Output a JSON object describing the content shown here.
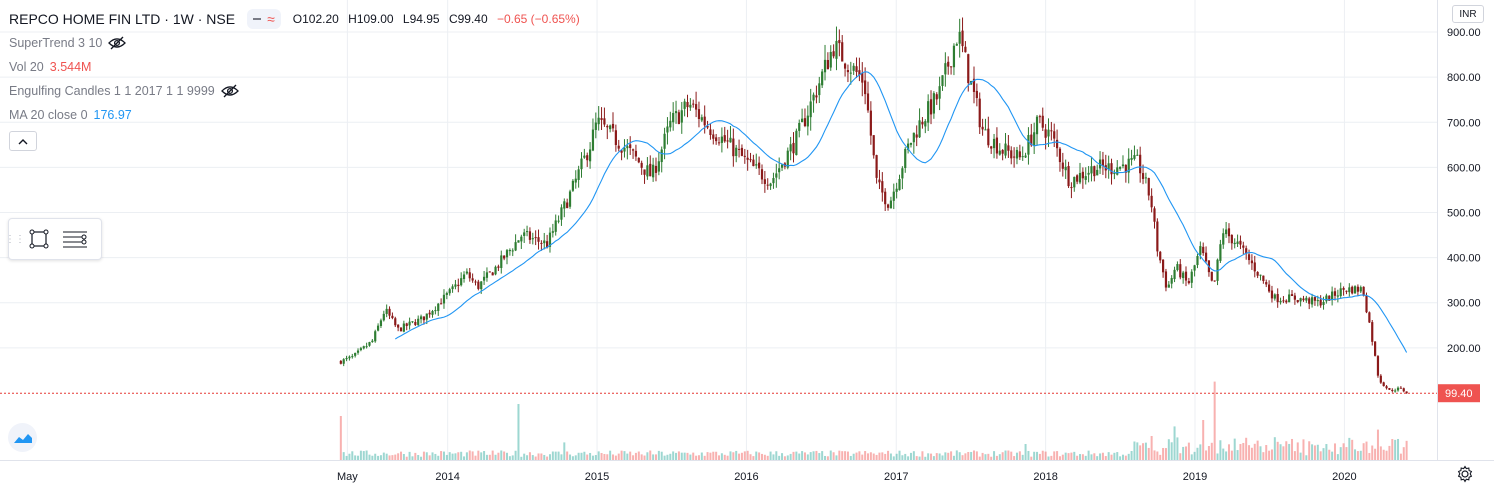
{
  "header": {
    "symbol": "REPCO HOME FIN LTD · 1W · NSE",
    "ohlc": {
      "o": "O102.20",
      "h": "H109.00",
      "l": "L94.95",
      "c": "C99.40",
      "chg": "−0.65 (−0.65%)"
    }
  },
  "indicators": [
    {
      "name": "SuperTrend 3 10",
      "value": "",
      "hidden": true
    },
    {
      "name": "Vol 20",
      "value": "3.544M",
      "hidden": false
    },
    {
      "name": "Engulfing Candles 1 1 2017 1 1 9999",
      "value": "",
      "hidden": true
    },
    {
      "name": "MA 20 close 0",
      "value": "176.97",
      "hidden": false
    }
  ],
  "currency": "INR",
  "colors": {
    "up": "#26a69a",
    "down": "#ef5350",
    "candle_up": "#2e7d32",
    "candle_down": "#8b1a1a",
    "ma": "#2196f3",
    "grid": "#eceff3",
    "last_price": "#e53935"
  },
  "icons": [
    "eye-off-icon",
    "chevron-up-icon",
    "rectangle-tool-icon",
    "lines-tool-icon",
    "tradingview-logo-icon",
    "gear-icon"
  ],
  "chart_data": {
    "type": "candlestick",
    "timeframe": "1W",
    "x_tick_labels": [
      "May",
      "2014",
      "2015",
      "2016",
      "2017",
      "2018",
      "2019",
      "2020"
    ],
    "y_tick_labels": [
      "200.00",
      "300.00",
      "400.00",
      "500.00",
      "600.00",
      "700.00",
      "800.00",
      "900.00"
    ],
    "ylim": [
      50,
      950
    ],
    "last_price": 99.4,
    "last_price_label": "99.40",
    "close_anchors": [
      [
        "2013-04-15",
        170
      ],
      [
        "2013-05-15",
        180
      ],
      [
        "2013-07-01",
        215
      ],
      [
        "2013-08-01",
        285
      ],
      [
        "2013-09-01",
        240
      ],
      [
        "2013-11-01",
        265
      ],
      [
        "2014-01-15",
        330
      ],
      [
        "2014-02-15",
        365
      ],
      [
        "2014-03-15",
        335
      ],
      [
        "2014-05-01",
        380
      ],
      [
        "2014-07-01",
        450
      ],
      [
        "2014-09-01",
        430
      ],
      [
        "2014-11-01",
        550
      ],
      [
        "2014-12-15",
        650
      ],
      [
        "2015-01-01",
        700
      ],
      [
        "2015-03-15",
        640
      ],
      [
        "2015-05-15",
        580
      ],
      [
        "2015-07-01",
        700
      ],
      [
        "2015-08-15",
        740
      ],
      [
        "2015-10-01",
        690
      ],
      [
        "2015-12-01",
        640
      ],
      [
        "2016-01-15",
        600
      ],
      [
        "2016-03-01",
        570
      ],
      [
        "2016-05-01",
        660
      ],
      [
        "2016-06-15",
        760
      ],
      [
        "2016-08-01",
        870
      ],
      [
        "2016-09-15",
        820
      ],
      [
        "2016-10-15",
        790
      ],
      [
        "2016-11-15",
        560
      ],
      [
        "2016-12-15",
        520
      ],
      [
        "2017-02-01",
        650
      ],
      [
        "2017-03-01",
        700
      ],
      [
        "2017-04-15",
        760
      ],
      [
        "2017-06-01",
        900
      ],
      [
        "2017-07-01",
        790
      ],
      [
        "2017-08-01",
        680
      ],
      [
        "2017-09-15",
        640
      ],
      [
        "2017-11-01",
        620
      ],
      [
        "2017-12-15",
        700
      ],
      [
        "2018-01-15",
        670
      ],
      [
        "2018-03-01",
        570
      ],
      [
        "2018-05-01",
        600
      ],
      [
        "2018-06-15",
        600
      ],
      [
        "2018-08-15",
        610
      ],
      [
        "2018-09-15",
        530
      ],
      [
        "2018-10-01",
        420
      ],
      [
        "2018-10-25",
        330
      ],
      [
        "2018-11-15",
        380
      ],
      [
        "2018-12-15",
        340
      ],
      [
        "2019-01-15",
        420
      ],
      [
        "2019-02-15",
        330
      ],
      [
        "2019-03-10",
        460
      ],
      [
        "2019-04-15",
        430
      ],
      [
        "2019-06-01",
        370
      ],
      [
        "2019-07-15",
        310
      ],
      [
        "2019-09-01",
        310
      ],
      [
        "2019-11-01",
        300
      ],
      [
        "2020-01-01",
        330
      ],
      [
        "2020-02-15",
        330
      ],
      [
        "2020-03-05",
        240
      ],
      [
        "2020-03-25",
        130
      ],
      [
        "2020-04-20",
        105
      ],
      [
        "2020-05-15",
        110
      ],
      [
        "2020-06-05",
        99.4
      ]
    ],
    "ma_period": 20,
    "ma_last_value": 176.97,
    "volume_spikes": [
      [
        "2013-04-15",
        0.55
      ],
      [
        "2014-06-20",
        0.7
      ],
      [
        "2014-10-15",
        0.22
      ],
      [
        "2017-11-15",
        0.2
      ],
      [
        "2018-09-15",
        0.3
      ],
      [
        "2018-11-10",
        0.42
      ],
      [
        "2019-01-20",
        0.5
      ],
      [
        "2019-02-20",
        0.98
      ],
      [
        "2020-03-20",
        0.38
      ]
    ],
    "first_week": "2013-04-15",
    "last_week": "2020-06-05",
    "time_axis_start": "2013-01-15",
    "time_axis_end": "2020-09-15",
    "grid": true
  }
}
